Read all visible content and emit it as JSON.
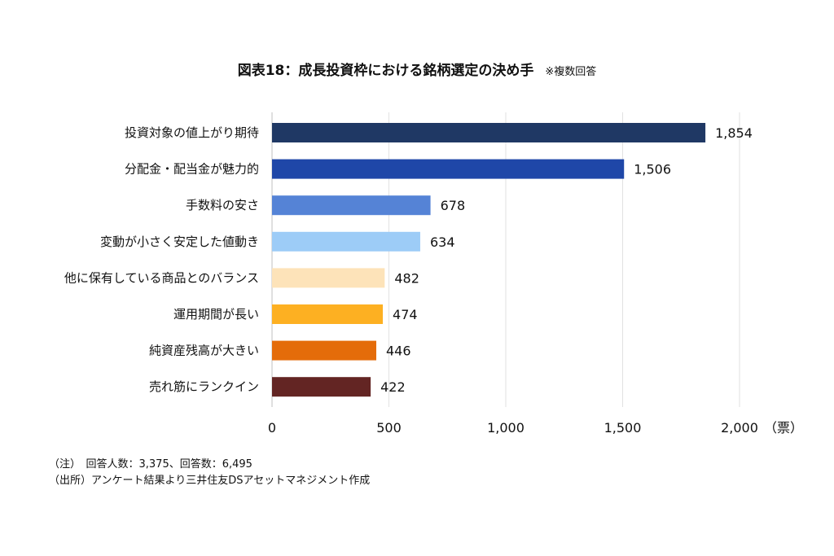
{
  "header": {
    "title": "図表18：成長投資枠における銘柄選定の決め手",
    "subtitle": "※複数回答"
  },
  "chart_data": {
    "type": "bar",
    "orientation": "horizontal",
    "categories": [
      "投資対象の値上がり期待",
      "分配金・配当金が魅力的",
      "手数料の安さ",
      "変動が小さく安定した値動き",
      "他に保有している商品とのバランス",
      "運用期間が長い",
      "純資産残高が大きい",
      "売れ筋にランクイン"
    ],
    "values": [
      1854,
      1506,
      678,
      634,
      482,
      474,
      446,
      422
    ],
    "value_labels": [
      "1,854",
      "1,506",
      "678",
      "634",
      "482",
      "474",
      "446",
      "422"
    ],
    "colors": [
      "#1f3864",
      "#1f47a8",
      "#5583d6",
      "#9dccf7",
      "#fde3b9",
      "#fdb022",
      "#e46c0a",
      "#632523"
    ],
    "xlim": [
      0,
      2000
    ],
    "xticks": [
      0,
      500,
      1000,
      1500,
      2000
    ],
    "xtick_labels": [
      "0",
      "500",
      "1,000",
      "1,500",
      "2,000"
    ],
    "x_unit": "（票）",
    "grid": "vertical"
  },
  "notes": {
    "line1": "（注）　回答人数：3,375、回答数：6,495",
    "line2": "（出所）アンケート結果より三井住友DSアセットマネジメント作成"
  }
}
